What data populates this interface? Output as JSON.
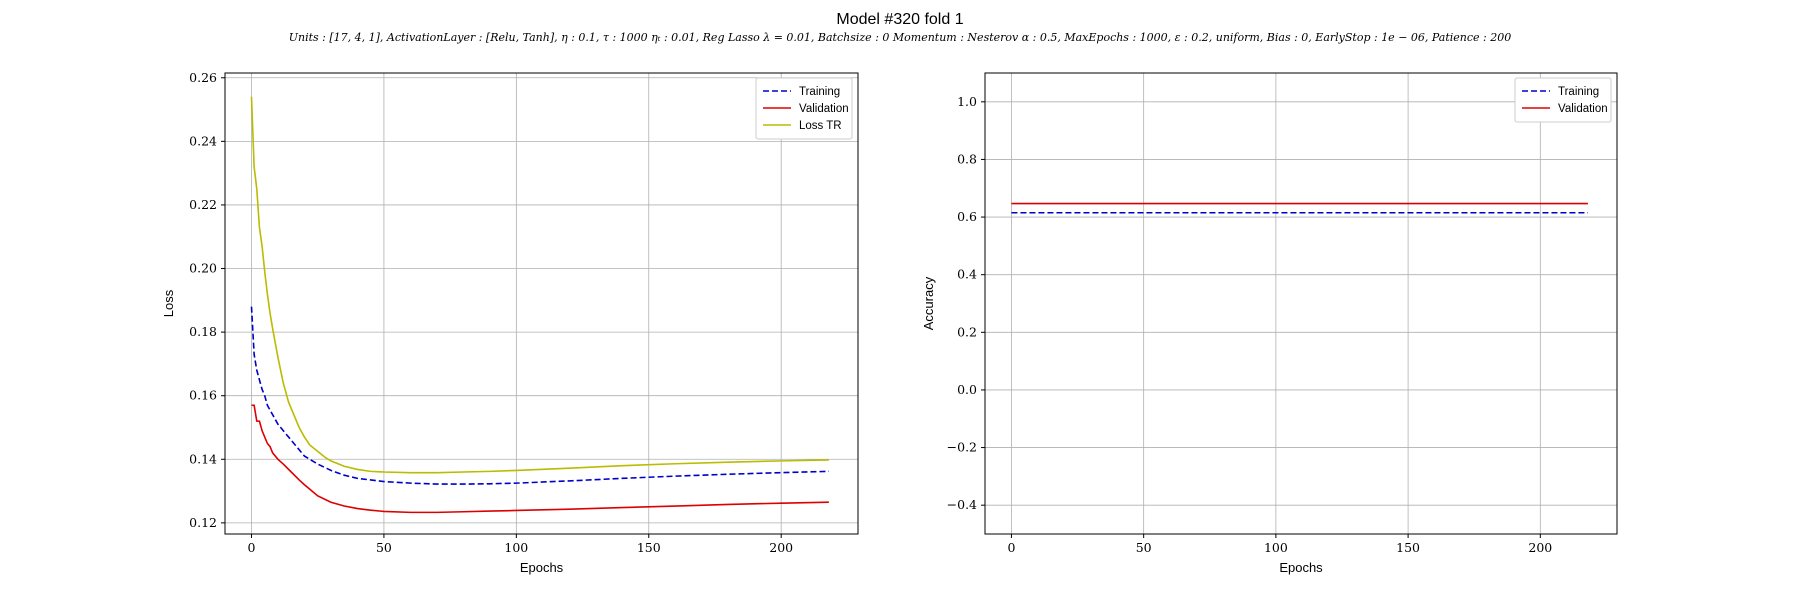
{
  "figure": {
    "title": "Model #320 fold 1",
    "subtitle": "Units : [17, 4, 1], ActivationLayer : [Relu, Tanh], η : 0.1, τ : 1000 ηₜ : 0.01, Reg Lasso λ = 0.01, Batchsize : 0 Momentum : Nesterov α : 0.5, MaxEpochs : 1000, ε : 0.2, uniform, Bias : 0, EarlyStop : 1e − 06, Patience : 200"
  },
  "chart_data": [
    {
      "type": "line",
      "xlabel": "Epochs",
      "ylabel": "Loss",
      "xlim": [
        -10,
        229
      ],
      "ylim": [
        0.1165,
        0.2615
      ],
      "xticks": [
        0,
        50,
        100,
        150,
        200
      ],
      "yticks": [
        0.12,
        0.14,
        0.16,
        0.18,
        0.2,
        0.22,
        0.24,
        0.26
      ],
      "ytick_labels": [
        "0.12",
        "0.14",
        "0.16",
        "0.18",
        "0.20",
        "0.22",
        "0.24",
        "0.26"
      ],
      "grid": true,
      "legend_position": "top-right",
      "series": [
        {
          "name": "Training",
          "color": "#0000cc",
          "style": "dashed",
          "x": [
            0,
            1,
            2,
            3,
            4,
            5,
            6,
            8,
            10,
            12,
            15,
            18,
            20,
            25,
            30,
            35,
            40,
            45,
            50,
            60,
            70,
            80,
            90,
            100,
            120,
            140,
            160,
            180,
            200,
            218
          ],
          "y": [
            0.188,
            0.173,
            0.168,
            0.165,
            0.162,
            0.16,
            0.157,
            0.154,
            0.151,
            0.149,
            0.146,
            0.143,
            0.141,
            0.1385,
            0.1365,
            0.135,
            0.134,
            0.1335,
            0.133,
            0.1325,
            0.1322,
            0.1322,
            0.1323,
            0.1325,
            0.1332,
            0.134,
            0.1347,
            0.1353,
            0.1358,
            0.1362
          ]
        },
        {
          "name": "Validation",
          "color": "#dd0000",
          "style": "solid",
          "x": [
            0,
            1,
            2,
            3,
            4,
            5,
            6,
            7,
            8,
            10,
            12,
            15,
            18,
            20,
            25,
            30,
            35,
            40,
            45,
            50,
            60,
            70,
            80,
            90,
            100,
            120,
            140,
            160,
            180,
            200,
            218
          ],
          "y": [
            0.157,
            0.157,
            0.152,
            0.152,
            0.149,
            0.147,
            0.145,
            0.144,
            0.142,
            0.14,
            0.1385,
            0.136,
            0.1335,
            0.132,
            0.1285,
            0.1265,
            0.1253,
            0.1245,
            0.124,
            0.1236,
            0.1233,
            0.1233,
            0.1235,
            0.1237,
            0.1239,
            0.1243,
            0.1248,
            0.1253,
            0.1258,
            0.1262,
            0.1265
          ]
        },
        {
          "name": "Loss TR",
          "color": "#bbbb00",
          "style": "solid",
          "x": [
            0,
            1,
            2,
            3,
            4,
            5,
            6,
            7,
            8,
            10,
            12,
            14,
            16,
            18,
            20,
            22,
            25,
            28,
            30,
            35,
            40,
            45,
            50,
            60,
            70,
            80,
            90,
            100,
            120,
            140,
            160,
            180,
            200,
            218
          ],
          "y": [
            0.254,
            0.232,
            0.225,
            0.213,
            0.207,
            0.199,
            0.192,
            0.186,
            0.181,
            0.172,
            0.164,
            0.158,
            0.154,
            0.15,
            0.147,
            0.1445,
            0.1425,
            0.1405,
            0.1395,
            0.1378,
            0.1368,
            0.1362,
            0.136,
            0.1358,
            0.1358,
            0.136,
            0.1362,
            0.1365,
            0.1372,
            0.138,
            0.1386,
            0.1391,
            0.1395,
            0.1398
          ]
        }
      ]
    },
    {
      "type": "line",
      "xlabel": "Epochs",
      "ylabel": "Accuracy",
      "xlim": [
        -10,
        229
      ],
      "ylim": [
        -0.5,
        1.1
      ],
      "xticks": [
        0,
        50,
        100,
        150,
        200
      ],
      "yticks": [
        -0.4,
        -0.2,
        0.0,
        0.2,
        0.4,
        0.6,
        0.8,
        1.0
      ],
      "ytick_labels": [
        "−0.4",
        "−0.2",
        "0.0",
        "0.2",
        "0.4",
        "0.6",
        "0.8",
        "1.0"
      ],
      "grid": true,
      "legend_position": "top-right",
      "series": [
        {
          "name": "Training",
          "color": "#0000cc",
          "style": "dashed",
          "x": [
            0,
            218
          ],
          "y": [
            0.615,
            0.615
          ]
        },
        {
          "name": "Validation",
          "color": "#dd0000",
          "style": "solid",
          "x": [
            0,
            218
          ],
          "y": [
            0.647,
            0.647
          ]
        }
      ]
    }
  ]
}
